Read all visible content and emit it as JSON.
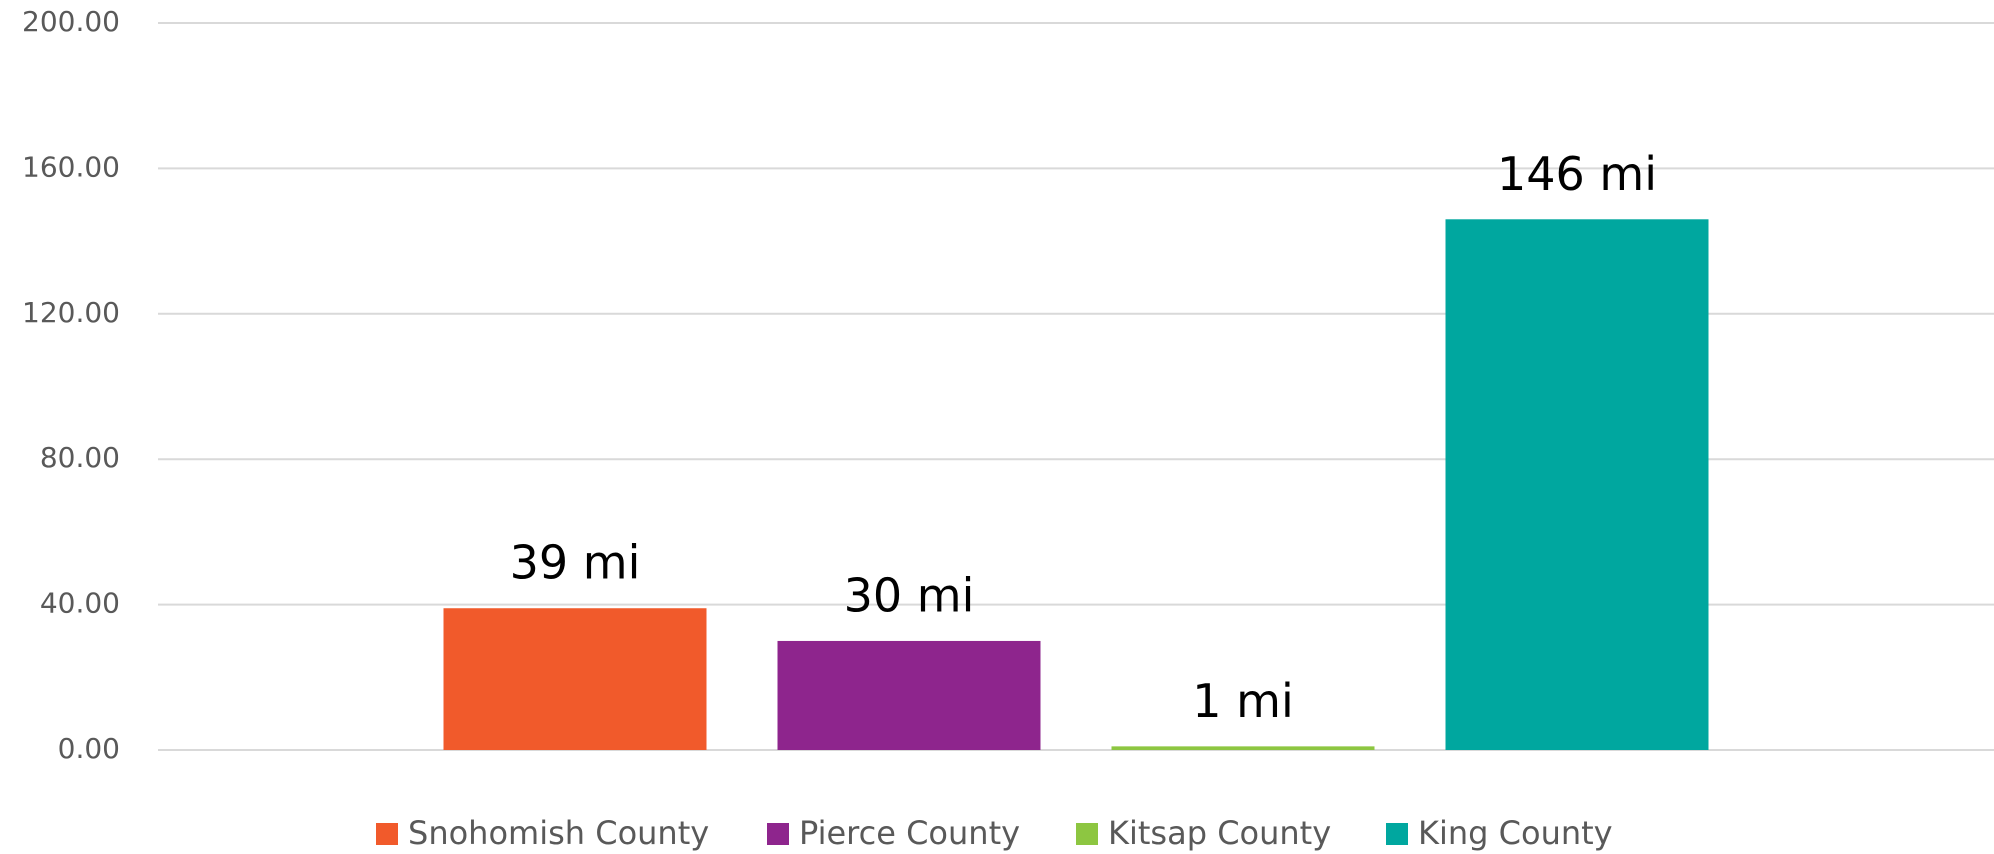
{
  "chart_data": {
    "type": "bar",
    "categories": [
      null
    ],
    "series": [
      {
        "name": "Snohomish County",
        "color": "#f15a2b",
        "values": [
          39
        ],
        "value_labels": [
          "39 mi"
        ]
      },
      {
        "name": "Pierce County",
        "color": "#8e258d",
        "values": [
          30
        ],
        "value_labels": [
          "30 mi"
        ]
      },
      {
        "name": "Kitsap County",
        "color": "#8dc641",
        "values": [
          1
        ],
        "value_labels": [
          "1 mi"
        ]
      },
      {
        "name": "King County",
        "color": "#00a79f",
        "values": [
          146
        ],
        "value_labels": [
          "146 mi"
        ]
      }
    ],
    "ylim": [
      0,
      200
    ],
    "yticks": [
      {
        "value": 0,
        "label": "0.00"
      },
      {
        "value": 40,
        "label": "40.00"
      },
      {
        "value": 80,
        "label": "80.00"
      },
      {
        "value": 120,
        "label": "120.00"
      },
      {
        "value": 160,
        "label": "160.00"
      },
      {
        "value": 200,
        "label": "200.00"
      }
    ],
    "grid": true,
    "legend": "bottom"
  }
}
